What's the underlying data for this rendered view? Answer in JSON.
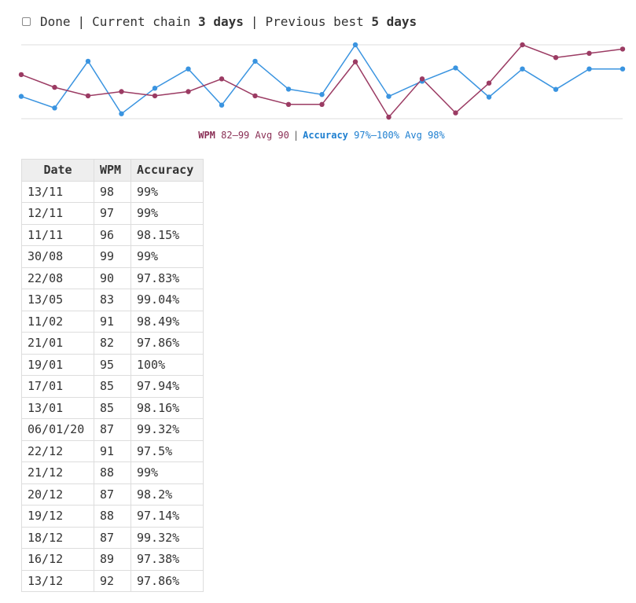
{
  "header": {
    "done_label": "Done",
    "separator": "|",
    "chain_label": "Current chain",
    "chain_value": "3 days",
    "best_label": "Previous best",
    "best_value": "5 days"
  },
  "legend": {
    "wpm_label": "WPM",
    "wpm_range": "82–99",
    "wpm_avg": "Avg 90",
    "separator": "|",
    "acc_label": "Accuracy",
    "acc_range": "97%–100%",
    "acc_avg": "Avg 98%"
  },
  "colors": {
    "wpm": "#9b3b63",
    "accuracy": "#3a94e0",
    "overlap": "#2a5a8c",
    "grid": "#dddddd"
  },
  "table": {
    "headers": [
      "Date",
      "WPM",
      "Accuracy"
    ],
    "rows": [
      [
        "13/11",
        "98",
        "99%"
      ],
      [
        "12/11",
        "97",
        "99%"
      ],
      [
        "11/11",
        "96",
        "98.15%"
      ],
      [
        "30/08",
        "99",
        "99%"
      ],
      [
        "22/08",
        "90",
        "97.83%"
      ],
      [
        "13/05",
        "83",
        "99.04%"
      ],
      [
        "11/02",
        "91",
        "98.49%"
      ],
      [
        "21/01",
        "82",
        "97.86%"
      ],
      [
        "19/01",
        "95",
        "100%"
      ],
      [
        "17/01",
        "85",
        "97.94%"
      ],
      [
        "13/01",
        "85",
        "98.16%"
      ],
      [
        "06/01/20",
        "87",
        "99.32%"
      ],
      [
        "22/12",
        "91",
        "97.5%"
      ],
      [
        "21/12",
        "88",
        "99%"
      ],
      [
        "20/12",
        "87",
        "98.2%"
      ],
      [
        "19/12",
        "88",
        "97.14%"
      ],
      [
        "18/12",
        "87",
        "99.32%"
      ],
      [
        "16/12",
        "89",
        "97.38%"
      ],
      [
        "13/12",
        "92",
        "97.86%"
      ]
    ]
  },
  "chart_data": {
    "type": "line",
    "order": "oldest-to-newest",
    "x": [
      "13/12",
      "16/12",
      "18/12",
      "19/12",
      "20/12",
      "21/12",
      "22/12",
      "06/01/20",
      "13/01",
      "17/01",
      "19/01",
      "21/01",
      "11/02",
      "13/05",
      "22/08",
      "30/08",
      "11/11",
      "12/11",
      "13/11"
    ],
    "series": [
      {
        "name": "WPM",
        "values": [
          92,
          89,
          87,
          88,
          87,
          88,
          91,
          87,
          85,
          85,
          95,
          82,
          91,
          83,
          90,
          99,
          96,
          97,
          98
        ],
        "ylim": [
          82,
          99
        ]
      },
      {
        "name": "Accuracy",
        "values": [
          97.86,
          97.38,
          99.32,
          97.14,
          98.2,
          99,
          97.5,
          99.32,
          98.16,
          97.94,
          100,
          97.86,
          98.49,
          99.04,
          97.83,
          99,
          98.15,
          99,
          99
        ],
        "ylim": [
          97,
          100
        ]
      }
    ],
    "grid": true,
    "legend": "bottom-center"
  }
}
